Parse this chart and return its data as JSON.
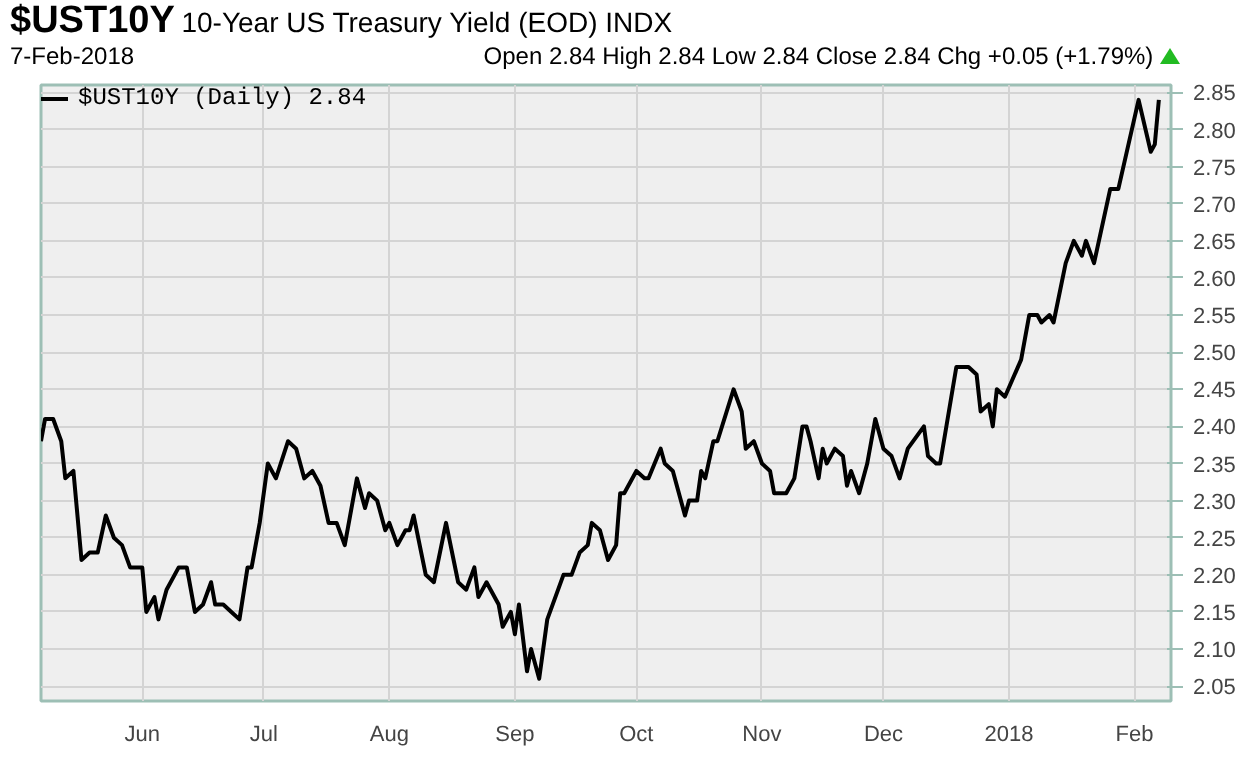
{
  "chart_data": {
    "type": "line",
    "title": "$UST10Y",
    "subtitle": "10-Year US Treasury Yield (EOD) INDX",
    "annotations": [
      "7-Feb-2018",
      "Open 2.84 High 2.84 Low 2.84 Close 2.84 Chg +0.05 (+1.79%)"
    ],
    "x": [
      "2017-05-07",
      "2017-05-08",
      "2017-05-10",
      "2017-05-12",
      "2017-05-13",
      "2017-05-15",
      "2017-05-17",
      "2017-05-19",
      "2017-05-21",
      "2017-05-23",
      "2017-05-25",
      "2017-05-27",
      "2017-05-29",
      "2017-06-01",
      "2017-06-02",
      "2017-06-04",
      "2017-06-05",
      "2017-06-07",
      "2017-06-10",
      "2017-06-12",
      "2017-06-14",
      "2017-06-16",
      "2017-06-18",
      "2017-06-19",
      "2017-06-21",
      "2017-06-23",
      "2017-06-25",
      "2017-06-27",
      "2017-06-28",
      "2017-06-30",
      "2017-07-02",
      "2017-07-04",
      "2017-07-07",
      "2017-07-09",
      "2017-07-11",
      "2017-07-13",
      "2017-07-15",
      "2017-07-17",
      "2017-07-19",
      "2017-07-21",
      "2017-07-24",
      "2017-07-26",
      "2017-07-27",
      "2017-07-29",
      "2017-07-31",
      "2017-08-01",
      "2017-08-03",
      "2017-08-05",
      "2017-08-06",
      "2017-08-07",
      "2017-08-10",
      "2017-08-12",
      "2017-08-15",
      "2017-08-18",
      "2017-08-20",
      "2017-08-22",
      "2017-08-23",
      "2017-08-25",
      "2017-08-28",
      "2017-08-29",
      "2017-08-31",
      "2017-09-01",
      "2017-09-02",
      "2017-09-04",
      "2017-09-05",
      "2017-09-07",
      "2017-09-09",
      "2017-09-13",
      "2017-09-15",
      "2017-09-17",
      "2017-09-19",
      "2017-09-20",
      "2017-09-22",
      "2017-09-24",
      "2017-09-26",
      "2017-09-27",
      "2017-09-28",
      "2017-10-01",
      "2017-10-03",
      "2017-10-04",
      "2017-10-07",
      "2017-10-08",
      "2017-10-10",
      "2017-10-13",
      "2017-10-14",
      "2017-10-16",
      "2017-10-17",
      "2017-10-18",
      "2017-10-20",
      "2017-10-21",
      "2017-10-25",
      "2017-10-27",
      "2017-10-28",
      "2017-10-30",
      "2017-11-01",
      "2017-11-03",
      "2017-11-04",
      "2017-11-07",
      "2017-11-09",
      "2017-11-11",
      "2017-11-12",
      "2017-11-13",
      "2017-11-15",
      "2017-11-16",
      "2017-11-17",
      "2017-11-19",
      "2017-11-21",
      "2017-11-22",
      "2017-11-23",
      "2017-11-25",
      "2017-11-27",
      "2017-11-29",
      "2017-12-01",
      "2017-12-03",
      "2017-12-05",
      "2017-12-07",
      "2017-12-11",
      "2017-12-12",
      "2017-12-14",
      "2017-12-15",
      "2017-12-19",
      "2017-12-22",
      "2017-12-24",
      "2017-12-25",
      "2017-12-27",
      "2017-12-28",
      "2017-12-29",
      "2017-12-31",
      "2018-01-04",
      "2018-01-06",
      "2018-01-08",
      "2018-01-09",
      "2018-01-11",
      "2018-01-12",
      "2018-01-15",
      "2018-01-17",
      "2018-01-19",
      "2018-01-20",
      "2018-01-22",
      "2018-01-26",
      "2018-01-28",
      "2018-02-02",
      "2018-02-05",
      "2018-02-06",
      "2018-02-07"
    ],
    "series": [
      {
        "name": "$UST10Y (Daily) 2.84",
        "color": "#000000",
        "values": [
          2.38,
          2.41,
          2.41,
          2.38,
          2.33,
          2.34,
          2.22,
          2.23,
          2.23,
          2.28,
          2.25,
          2.24,
          2.21,
          2.21,
          2.15,
          2.17,
          2.14,
          2.18,
          2.21,
          2.21,
          2.15,
          2.16,
          2.19,
          2.16,
          2.16,
          2.15,
          2.14,
          2.21,
          2.21,
          2.27,
          2.35,
          2.33,
          2.38,
          2.37,
          2.33,
          2.34,
          2.32,
          2.27,
          2.27,
          2.24,
          2.33,
          2.29,
          2.31,
          2.3,
          2.26,
          2.27,
          2.24,
          2.26,
          2.26,
          2.28,
          2.2,
          2.19,
          2.27,
          2.19,
          2.18,
          2.21,
          2.17,
          2.19,
          2.16,
          2.13,
          2.15,
          2.12,
          2.16,
          2.07,
          2.1,
          2.06,
          2.14,
          2.2,
          2.2,
          2.23,
          2.24,
          2.27,
          2.26,
          2.22,
          2.24,
          2.31,
          2.31,
          2.34,
          2.33,
          2.33,
          2.37,
          2.35,
          2.34,
          2.28,
          2.3,
          2.3,
          2.34,
          2.33,
          2.38,
          2.38,
          2.45,
          2.42,
          2.37,
          2.38,
          2.35,
          2.34,
          2.31,
          2.31,
          2.33,
          2.4,
          2.4,
          2.38,
          2.33,
          2.37,
          2.35,
          2.37,
          2.36,
          2.32,
          2.34,
          2.31,
          2.35,
          2.41,
          2.37,
          2.36,
          2.33,
          2.37,
          2.4,
          2.36,
          2.35,
          2.35,
          2.48,
          2.48,
          2.47,
          2.42,
          2.43,
          2.4,
          2.45,
          2.44,
          2.49,
          2.55,
          2.55,
          2.54,
          2.55,
          2.54,
          2.62,
          2.65,
          2.63,
          2.65,
          2.62,
          2.72,
          2.72,
          2.84,
          2.77,
          2.78,
          2.84
        ]
      }
    ],
    "xlim": [
      "2017-05-07",
      "2018-02-10"
    ],
    "xticks": [
      {
        "value": "2017-06-01",
        "label": "Jun"
      },
      {
        "value": "2017-07-01",
        "label": "Jul"
      },
      {
        "value": "2017-08-01",
        "label": "Aug"
      },
      {
        "value": "2017-09-01",
        "label": "Sep"
      },
      {
        "value": "2017-10-01",
        "label": "Oct"
      },
      {
        "value": "2017-11-01",
        "label": "Nov"
      },
      {
        "value": "2017-12-01",
        "label": "Dec"
      },
      {
        "value": "2018-01-01",
        "label": "2018"
      },
      {
        "value": "2018-02-01",
        "label": "Feb"
      }
    ],
    "ylim": [
      2.03,
      2.86
    ],
    "yticks": [
      2.05,
      {
        "value": 2.1,
        "label": "2.10"
      },
      2.15,
      {
        "value": 2.2,
        "label": "2.20"
      },
      2.25,
      {
        "value": 2.3,
        "label": "2.30"
      },
      2.35,
      {
        "value": 2.4,
        "label": "2.40"
      },
      2.45,
      {
        "value": 2.5,
        "label": "2.50"
      },
      2.55,
      {
        "value": 2.6,
        "label": "2.60"
      },
      2.65,
      {
        "value": 2.7,
        "label": "2.70"
      },
      2.75,
      {
        "value": 2.8,
        "label": "2.80"
      },
      2.85
    ],
    "grid": true,
    "legend": "top left",
    "marker": "none",
    "line_style": "solid"
  }
}
